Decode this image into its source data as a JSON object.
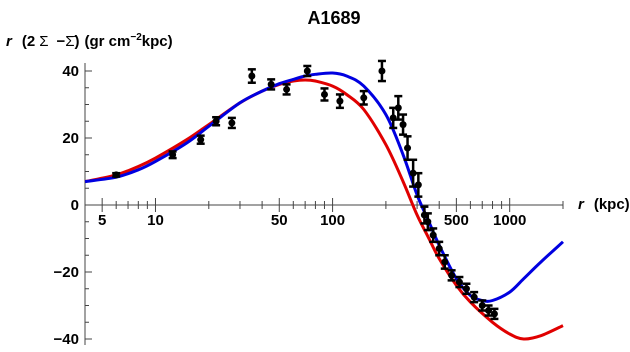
{
  "chart_data": {
    "type": "line",
    "title": "A1689",
    "xlabel": "r  (kpc)",
    "ylabel": "r  (2 Σ  −Σ̄) (gr cm⁻²kpc)",
    "ylabel_parts": {
      "r": "r",
      "open": "(2",
      "sigma": "Σ",
      "minus": "−",
      "sigmabar": "Σ̄",
      "close": ")",
      "units": "(gr cm",
      "exp": "−2",
      "units_end": "kpc)"
    },
    "xlabel_parts": {
      "r": "r",
      "units": "(kpc)"
    },
    "x_scale": "log",
    "xlim": [
      4,
      2000
    ],
    "ylim": [
      -42,
      44
    ],
    "x_ticks": [
      5,
      10,
      50,
      100,
      500,
      1000
    ],
    "x_tick_labels": [
      "5",
      "10",
      "50",
      "100",
      "500",
      "1000"
    ],
    "y_ticks": [
      -40,
      -20,
      0,
      20,
      40
    ],
    "y_tick_labels": [
      "−40",
      "−20",
      "0",
      "20",
      "40"
    ],
    "series": [
      {
        "color": "#e00000",
        "x": [
          4,
          6,
          8,
          10,
          15,
          20,
          30,
          40,
          50,
          60,
          70,
          80,
          100,
          120,
          150,
          200,
          250,
          300,
          350,
          400,
          500,
          600,
          800,
          1000,
          1200,
          1500,
          2000
        ],
        "values": [
          7,
          9,
          11.5,
          14,
          19.5,
          24,
          30.5,
          34,
          36,
          37,
          37.3,
          37,
          35.5,
          33,
          28.5,
          18,
          7,
          -3,
          -10,
          -16,
          -24,
          -29,
          -35,
          -38.5,
          -40,
          -39,
          -36
        ]
      },
      {
        "color": "#0000e0",
        "x": [
          4,
          6,
          8,
          10,
          15,
          20,
          30,
          40,
          50,
          60,
          70,
          80,
          100,
          120,
          150,
          200,
          250,
          300,
          350,
          400,
          500,
          600,
          700,
          800,
          1000,
          1200,
          1500,
          2000
        ],
        "values": [
          7,
          8.3,
          10.5,
          13,
          18.5,
          23.5,
          30.5,
          34,
          36.2,
          37.5,
          38.5,
          39,
          39.4,
          38.5,
          35.5,
          27,
          15,
          3,
          -5,
          -12,
          -22,
          -27,
          -28.5,
          -28.5,
          -26,
          -22,
          -17,
          -11
        ]
      }
    ],
    "points": [
      {
        "x": 6,
        "y": 9,
        "err": 0.5
      },
      {
        "x": 12.5,
        "y": 15,
        "err": 1
      },
      {
        "x": 18,
        "y": 19.5,
        "err": 1.2
      },
      {
        "x": 22,
        "y": 25,
        "err": 1.2
      },
      {
        "x": 27,
        "y": 24.5,
        "err": 1.5
      },
      {
        "x": 35,
        "y": 38.5,
        "err": 2
      },
      {
        "x": 45,
        "y": 36,
        "err": 1.5
      },
      {
        "x": 55,
        "y": 34.5,
        "err": 1.5
      },
      {
        "x": 72,
        "y": 40,
        "err": 1.5
      },
      {
        "x": 90,
        "y": 33,
        "err": 1.8
      },
      {
        "x": 110,
        "y": 31,
        "err": 2
      },
      {
        "x": 150,
        "y": 32,
        "err": 2
      },
      {
        "x": 190,
        "y": 40,
        "err": 3
      },
      {
        "x": 220,
        "y": 26,
        "err": 3
      },
      {
        "x": 235,
        "y": 29,
        "err": 3.5
      },
      {
        "x": 250,
        "y": 24,
        "err": 3
      },
      {
        "x": 265,
        "y": 17,
        "err": 3.5
      },
      {
        "x": 285,
        "y": 9.5,
        "err": 4
      },
      {
        "x": 305,
        "y": 6,
        "err": 3.5
      },
      {
        "x": 330,
        "y": -3,
        "err": 2.5
      },
      {
        "x": 345,
        "y": -5,
        "err": 2.5
      },
      {
        "x": 370,
        "y": -9,
        "err": 2
      },
      {
        "x": 400,
        "y": -13,
        "err": 2
      },
      {
        "x": 430,
        "y": -17,
        "err": 2
      },
      {
        "x": 470,
        "y": -21,
        "err": 1.5
      },
      {
        "x": 520,
        "y": -23,
        "err": 1.5
      },
      {
        "x": 570,
        "y": -25,
        "err": 1.5
      },
      {
        "x": 630,
        "y": -27.5,
        "err": 1.5
      },
      {
        "x": 700,
        "y": -30,
        "err": 1.5
      },
      {
        "x": 760,
        "y": -31.5,
        "err": 1.5
      },
      {
        "x": 820,
        "y": -32.5,
        "err": 1.5
      }
    ],
    "grid": false,
    "legend": "none"
  }
}
